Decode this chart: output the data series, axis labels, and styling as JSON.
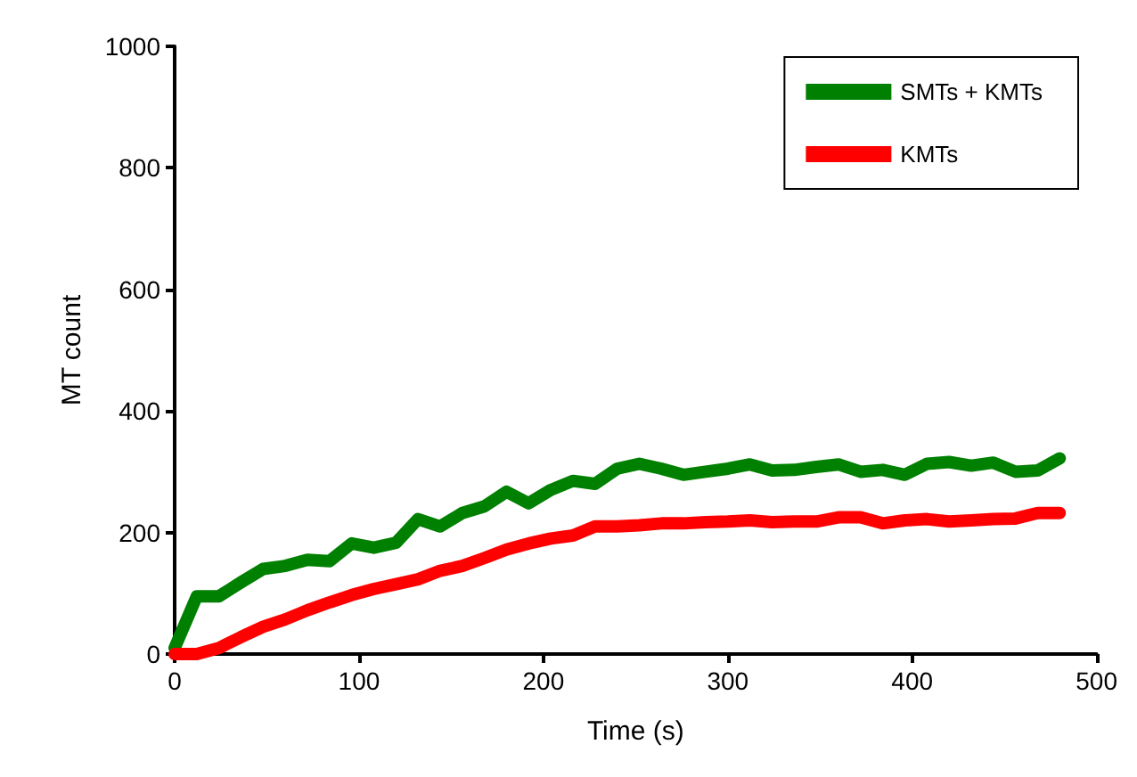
{
  "chart_data": {
    "type": "line",
    "xlabel": "Time (s)",
    "ylabel": "MT count",
    "x": [
      0,
      12,
      24,
      36,
      48,
      60,
      72,
      84,
      96,
      108,
      120,
      132,
      144,
      156,
      168,
      180,
      192,
      204,
      216,
      228,
      240,
      252,
      264,
      276,
      288,
      300,
      312,
      324,
      336,
      348,
      360,
      372,
      384,
      396,
      408,
      420,
      432,
      444,
      456,
      468,
      480
    ],
    "series": [
      {
        "name": "SMTs + KMTs",
        "color": "#008000",
        "values": [
          10,
          95,
          95,
          118,
          140,
          145,
          155,
          153,
          182,
          175,
          183,
          222,
          210,
          232,
          243,
          267,
          248,
          270,
          285,
          280,
          305,
          313,
          305,
          295,
          300,
          305,
          312,
          302,
          303,
          308,
          312,
          300,
          303,
          295,
          313,
          316,
          310,
          315,
          300,
          302,
          322
        ]
      },
      {
        "name": "KMTs",
        "color": "#ff0000",
        "values": [
          0,
          0,
          10,
          28,
          45,
          57,
          72,
          85,
          97,
          107,
          115,
          123,
          137,
          145,
          158,
          172,
          182,
          190,
          195,
          210,
          210,
          212,
          215,
          215,
          217,
          218,
          220,
          217,
          218,
          218,
          225,
          225,
          215,
          220,
          222,
          218,
          220,
          222,
          223,
          232,
          232
        ]
      }
    ],
    "xlim": [
      0,
      500
    ],
    "xticks": [
      0,
      100,
      200,
      300,
      400,
      500
    ],
    "ylim": [
      0,
      1000
    ],
    "yticks": [
      0,
      200,
      400,
      600,
      800,
      1000
    ],
    "grid": false,
    "legend": "top right",
    "marker": "none",
    "line_style": "solid"
  }
}
